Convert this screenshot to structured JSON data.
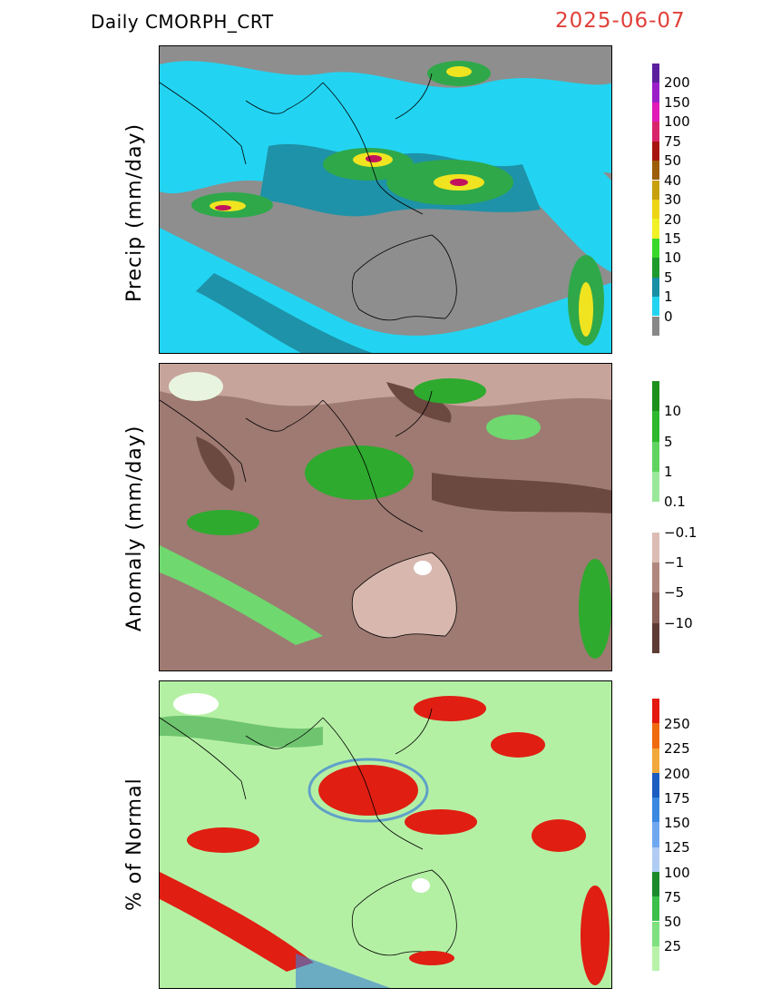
{
  "header": {
    "title": "Daily  CMORPH_CRT",
    "date": "2025-06-07"
  },
  "panels": [
    {
      "id": "precip",
      "ylabel": "Precip  (mm/day)",
      "colorbar": {
        "labels": [
          "200",
          "150",
          "100",
          "75",
          "50",
          "40",
          "30",
          "20",
          "15",
          "10",
          "5",
          "1",
          "0"
        ],
        "colors": [
          "#5b1f9e",
          "#9a1fc8",
          "#e01bb7",
          "#d8246a",
          "#a8140f",
          "#9b5e0a",
          "#c7a10e",
          "#ecd516",
          "#f2f026",
          "#38d82c",
          "#1f9a2d",
          "#178fa5",
          "#23d4f0",
          "#888888"
        ]
      },
      "palette": {
        "ocean": "#8e8e8e",
        "land": "#8e8e8e",
        "wet1": "#22d4f2",
        "wet2": "#1e92a8",
        "wet3": "#2fa84a",
        "heavy1": "#f0e420",
        "heavy2": "#c2125e"
      }
    },
    {
      "id": "anomaly",
      "ylabel": "Anomaly  (mm/day)",
      "colorbar": {
        "labels": [
          "10",
          "5",
          "1",
          "0.1",
          "−0.1",
          "−1",
          "−5",
          "−10"
        ],
        "colors": [
          "#1d8f1d",
          "#2eb82e",
          "#5fd45f",
          "#9ae89a",
          "#ffffff",
          "#dcbcb4",
          "#b0877e",
          "#8a6058",
          "#5e3c36"
        ]
      },
      "palette": {
        "base": "#9e7a72",
        "light": "#d8b8ae",
        "dark": "#6b4840",
        "green1": "#2eaa2e",
        "green2": "#6fd86f"
      }
    },
    {
      "id": "percent",
      "ylabel": "% of Normal",
      "colorbar": {
        "labels": [
          "250",
          "225",
          "200",
          "175",
          "150",
          "125",
          "100",
          "75",
          "50",
          "25"
        ],
        "colors": [
          "#e41a10",
          "#f06a10",
          "#f2a83a",
          "#1c5cc0",
          "#3a88e0",
          "#70a8f0",
          "#b0ccf4",
          "#1c8a2a",
          "#3cc04a",
          "#7ee07e",
          "#b8f2a8"
        ]
      },
      "palette": {
        "base": "#b4f0a4",
        "wet": "#e01e12",
        "blue": "#3a7fd8",
        "green": "#2a9a3a",
        "white": "#ffffff"
      }
    }
  ]
}
